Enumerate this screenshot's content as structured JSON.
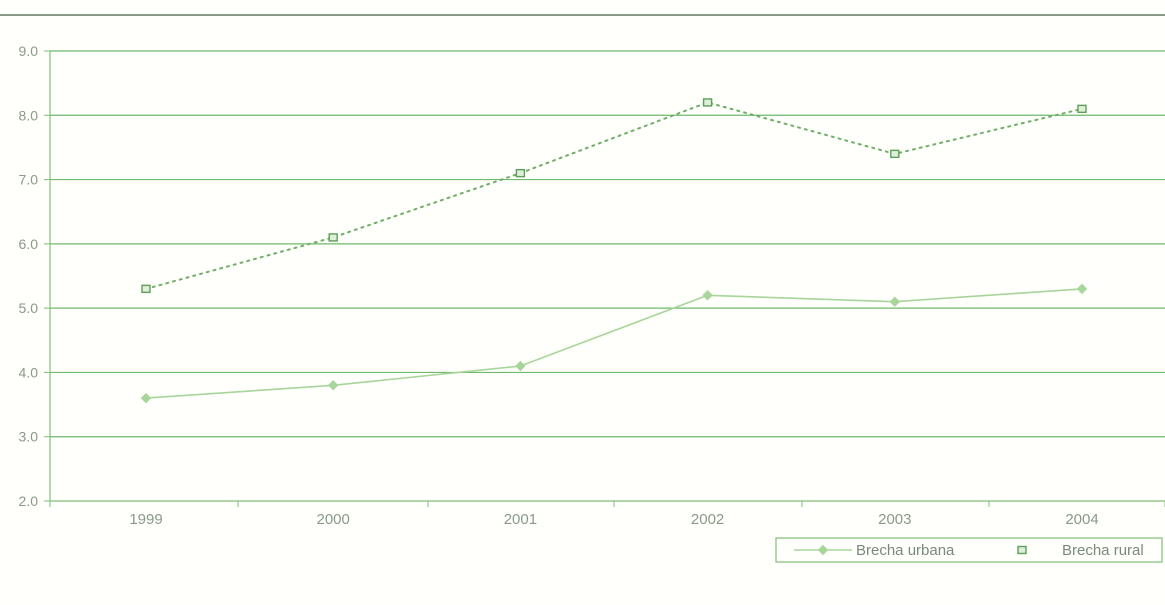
{
  "chart_data": {
    "type": "line",
    "title": "",
    "xlabel": "",
    "ylabel": "",
    "categories": [
      "1999",
      "2000",
      "2001",
      "2002",
      "2003",
      "2004"
    ],
    "ylim": [
      2.0,
      9.0
    ],
    "yticks": [
      "2.0",
      "3.0",
      "4.0",
      "5.0",
      "6.0",
      "7.0",
      "8.0",
      "9.0"
    ],
    "grid": true,
    "legend_position": "bottom-right",
    "series": [
      {
        "name": "Brecha urbana",
        "values": [
          3.6,
          3.8,
          4.1,
          5.2,
          5.1,
          5.3
        ],
        "color": "#a8d59a",
        "line_style": "solid",
        "marker": "diamond"
      },
      {
        "name": "Brecha rural",
        "values": [
          5.3,
          6.1,
          7.1,
          8.2,
          7.4,
          8.1
        ],
        "color": "#6fae68",
        "line_style": "dotted",
        "marker": "square"
      }
    ],
    "colors": {
      "axis": "#7fbf78",
      "gridline": "#6fb86c",
      "top_rule": "#8a9a88",
      "tick_text": "#8a9a88",
      "legend_text": "#7a8a7a"
    }
  }
}
